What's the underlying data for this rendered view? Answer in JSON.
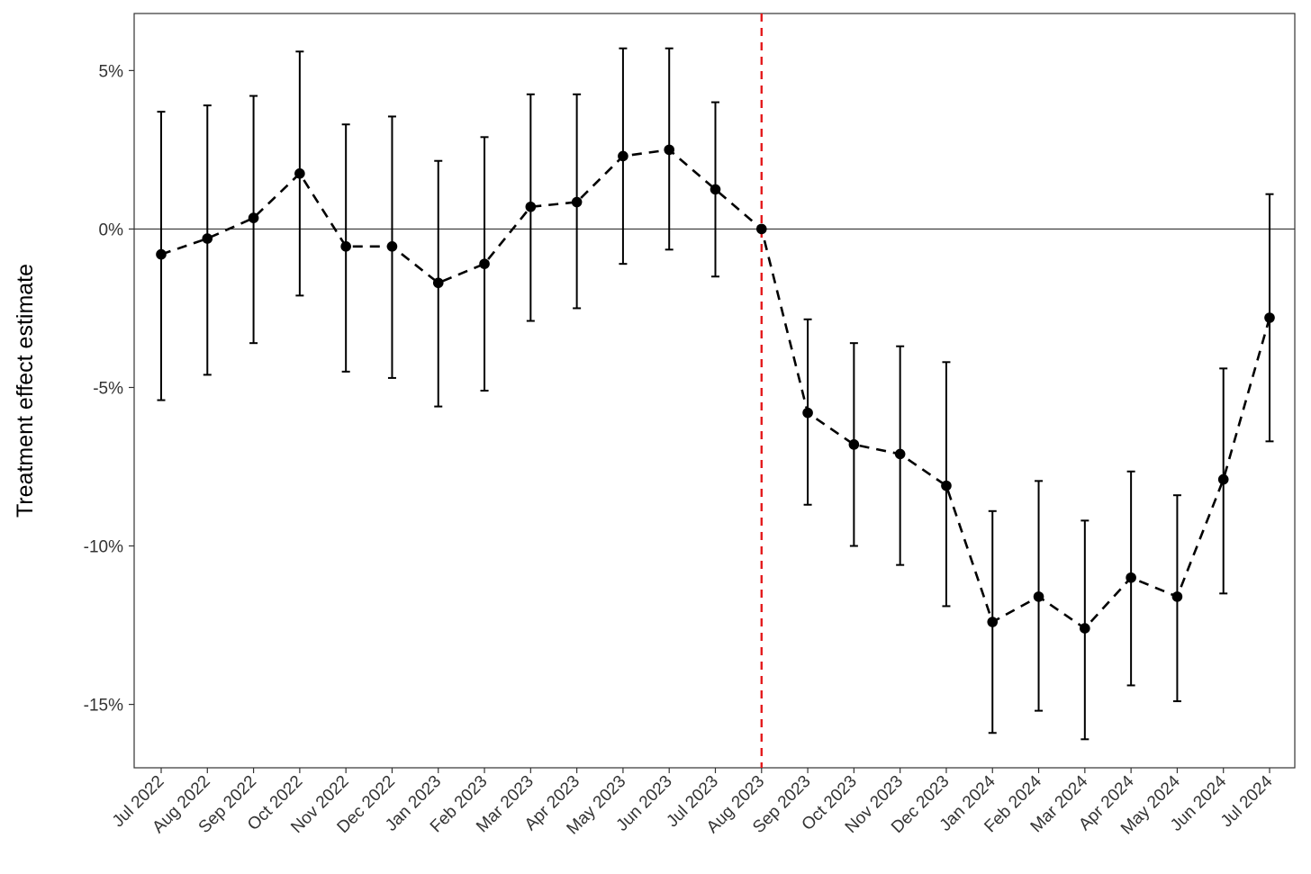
{
  "chart_data": {
    "type": "scatter",
    "title": "",
    "xlabel": "",
    "ylabel": "Treatment effect estimate",
    "categories": [
      "Jul 2022",
      "Aug 2022",
      "Sep 2022",
      "Oct 2022",
      "Nov 2022",
      "Dec 2022",
      "Jan 2023",
      "Feb 2023",
      "Mar 2023",
      "Apr 2023",
      "May 2023",
      "Jun 2023",
      "Jul 2023",
      "Aug 2023",
      "Sep 2023",
      "Oct 2023",
      "Nov 2023",
      "Dec 2023",
      "Jan 2024",
      "Feb 2024",
      "Mar 2024",
      "Apr 2024",
      "May 2024",
      "Jun 2024",
      "Jul 2024"
    ],
    "estimate": [
      -0.8,
      -0.3,
      0.35,
      1.75,
      -0.55,
      -0.55,
      -1.7,
      -1.1,
      0.7,
      0.85,
      2.3,
      2.5,
      1.25,
      0.0,
      -5.8,
      -6.8,
      -7.1,
      -8.1,
      -12.4,
      -11.6,
      -12.6,
      -11.0,
      -11.6,
      -7.9,
      -2.8
    ],
    "lower": [
      -5.4,
      -4.6,
      -3.6,
      -2.1,
      -4.5,
      -4.7,
      -5.6,
      -5.1,
      -2.9,
      -2.5,
      -1.1,
      -0.65,
      -1.5,
      0.0,
      -8.7,
      -10.0,
      -10.6,
      -11.9,
      -15.9,
      -15.2,
      -16.1,
      -14.4,
      -14.9,
      -11.5,
      -6.7
    ],
    "upper": [
      3.7,
      3.9,
      4.2,
      5.6,
      3.3,
      3.55,
      2.15,
      2.9,
      4.25,
      4.25,
      5.7,
      5.7,
      4.0,
      0.0,
      -2.85,
      -3.6,
      -3.7,
      -4.2,
      -8.9,
      -7.95,
      -9.2,
      -7.65,
      -8.4,
      -4.4,
      1.1
    ],
    "y_unit": "%",
    "ylim": [
      -17,
      6.8
    ],
    "yticks": [
      5,
      0,
      -5,
      -10,
      -15
    ],
    "ytick_labels": [
      "5%",
      "0%",
      "-5%",
      "-10%",
      "-15%"
    ],
    "reference_line_y": 0,
    "event_line_category": "Aug 2023",
    "grid": false,
    "legend": "none",
    "colors": {
      "points": "#000000",
      "event_line": "#e41a1c",
      "reference_line": "#333333",
      "frame": "#333333"
    }
  }
}
